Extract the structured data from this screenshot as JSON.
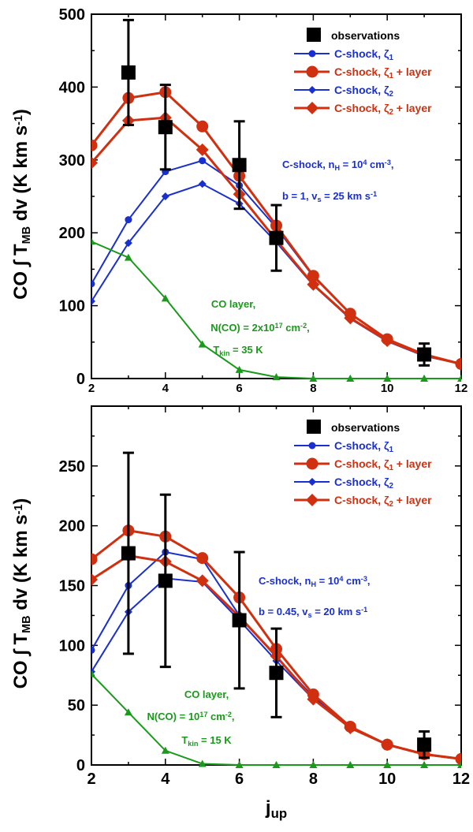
{
  "colors": {
    "observations": "#000000",
    "zeta1": "#1a2fd0",
    "zeta1_layer": "#d03010",
    "zeta2": "#1a2fd0",
    "zeta2_layer": "#d03010",
    "layer": "#1a9a1a",
    "frame": "#000000"
  },
  "chart_data": [
    {
      "type": "line",
      "name": "top",
      "xlim": [
        2,
        12
      ],
      "ylim": [
        0,
        500
      ],
      "yticks": [
        0,
        100,
        200,
        300,
        400,
        500
      ],
      "xticks": [
        2,
        4,
        6,
        8,
        10,
        12
      ],
      "ylabel": {
        "prefix": "CO",
        "integral": "∫",
        "T": "T",
        "T_sub": "MB",
        "dv": "dv",
        "units_open": "(K km s",
        "units_sup": "-1",
        "units_close": ")"
      },
      "legend": {
        "position": "top-right",
        "entries": [
          {
            "key": "observations",
            "label": "observations",
            "sub": ""
          },
          {
            "key": "zeta1",
            "label": "C-shock, ζ",
            "sub": "1",
            "suffix": ""
          },
          {
            "key": "zeta1_layer",
            "label": "C-shock, ζ",
            "sub": "1",
            "suffix": " + layer"
          },
          {
            "key": "zeta2",
            "label": "C-shock, ζ",
            "sub": "2",
            "suffix": ""
          },
          {
            "key": "zeta2_layer",
            "label": "C-shock, ζ",
            "sub": "2",
            "suffix": " + layer"
          }
        ]
      },
      "observations": {
        "x": [
          3,
          4,
          6,
          7,
          11
        ],
        "y": [
          420,
          345,
          293,
          193,
          33
        ],
        "err": [
          72,
          58,
          60,
          45,
          15
        ]
      },
      "series": [
        {
          "key": "zeta1",
          "marker": "circle",
          "x": [
            2,
            3,
            4,
            5,
            6,
            7,
            8,
            9,
            10,
            11,
            12
          ],
          "y": [
            130,
            218,
            284,
            299,
            265,
            207,
            140,
            89,
            54,
            33,
            20
          ]
        },
        {
          "key": "zeta2",
          "marker": "diamond",
          "x": [
            2,
            3,
            4,
            5,
            6,
            7,
            8,
            9,
            10,
            11,
            12
          ],
          "y": [
            106,
            186,
            250,
            267,
            240,
            187,
            128,
            82,
            51,
            31,
            20
          ]
        },
        {
          "key": "zeta1_layer",
          "marker": "circle-big",
          "x": [
            2,
            3,
            4,
            5,
            6,
            7,
            8,
            9,
            10,
            11,
            12
          ],
          "y": [
            320,
            385,
            393,
            346,
            278,
            210,
            141,
            89,
            54,
            33,
            20
          ]
        },
        {
          "key": "zeta2_layer",
          "marker": "diamond-big",
          "x": [
            2,
            3,
            4,
            5,
            6,
            7,
            8,
            9,
            10,
            11,
            12
          ],
          "y": [
            296,
            354,
            358,
            314,
            253,
            190,
            129,
            83,
            52,
            32,
            20
          ]
        },
        {
          "key": "layer",
          "marker": "triangle",
          "x": [
            2,
            3,
            4,
            5,
            6,
            7,
            8,
            9,
            10,
            11,
            12
          ],
          "y": [
            188,
            166,
            110,
            47,
            12,
            2,
            0,
            0,
            0,
            0,
            0
          ]
        }
      ],
      "annotations": {
        "shock": {
          "line1_a": "C-shock, n",
          "line1_sub": "H",
          "line1_b": " = 10",
          "line1_sup": "4",
          "line1_c": " cm",
          "line1_sup2": "-3",
          "line1_d": ",",
          "line2_a": "b = 1, v",
          "line2_sub": "s",
          "line2_b": " = 25 km s",
          "line2_sup": "-1"
        },
        "layer": {
          "line1": "CO layer,",
          "line2_a": "N(CO) = 2x10",
          "line2_sup": "17",
          "line2_b": " cm",
          "line2_sup2": "-2",
          "line2_c": ",",
          "line3_a": "T",
          "line3_sub": "kin",
          "line3_b": " = 35 K"
        }
      }
    },
    {
      "type": "line",
      "name": "bottom",
      "xlim": [
        2,
        12
      ],
      "ylim": [
        0,
        300
      ],
      "yticks": [
        0,
        50,
        100,
        150,
        200,
        250
      ],
      "xticks": [
        2,
        4,
        6,
        8,
        10,
        12
      ],
      "xlabel": {
        "main": "j",
        "sub": "up"
      },
      "ylabel": {
        "prefix": "CO",
        "integral": "∫",
        "T": "T",
        "T_sub": "MB",
        "dv": "dv",
        "units_open": "(K km s",
        "units_sup": "-1",
        "units_close": ")"
      },
      "legend": {
        "position": "top-right",
        "entries": [
          {
            "key": "observations",
            "label": "observations",
            "sub": ""
          },
          {
            "key": "zeta1",
            "label": "C-shock, ζ",
            "sub": "1",
            "suffix": ""
          },
          {
            "key": "zeta1_layer",
            "label": "C-shock, ζ",
            "sub": "1",
            "suffix": " + layer"
          },
          {
            "key": "zeta2",
            "label": "C-shock, ζ",
            "sub": "2",
            "suffix": ""
          },
          {
            "key": "zeta2_layer",
            "label": "C-shock, ζ",
            "sub": "2",
            "suffix": " + layer"
          }
        ]
      },
      "observations": {
        "x": [
          3,
          4,
          6,
          7,
          11
        ],
        "y": [
          177,
          154,
          121,
          77,
          17
        ],
        "err": [
          84,
          72,
          57,
          37,
          11
        ]
      },
      "series": [
        {
          "key": "zeta1",
          "marker": "circle",
          "x": [
            2,
            3,
            4,
            5,
            6,
            7,
            8,
            9,
            10,
            11,
            12
          ],
          "y": [
            96,
            150,
            178,
            172,
            125,
            90,
            57,
            32,
            17,
            9,
            5
          ]
        },
        {
          "key": "zeta2",
          "marker": "diamond",
          "x": [
            2,
            3,
            4,
            5,
            6,
            7,
            8,
            9,
            10,
            11,
            12
          ],
          "y": [
            78,
            128,
            156,
            153,
            121,
            87,
            55,
            31,
            17,
            9,
            5
          ]
        },
        {
          "key": "zeta1_layer",
          "marker": "circle-big",
          "x": [
            2,
            3,
            4,
            5,
            6,
            7,
            8,
            9,
            10,
            11,
            12
          ],
          "y": [
            172,
            196,
            191,
            173,
            140,
            97,
            59,
            32,
            17,
            9,
            5
          ]
        },
        {
          "key": "zeta2_layer",
          "marker": "diamond-big",
          "x": [
            2,
            3,
            4,
            5,
            6,
            7,
            8,
            9,
            10,
            11,
            12
          ],
          "y": [
            155,
            175,
            170,
            154,
            124,
            91,
            55,
            31,
            17,
            9,
            5
          ]
        },
        {
          "key": "layer",
          "marker": "triangle",
          "x": [
            2,
            3,
            4,
            5,
            6,
            7,
            8,
            9,
            10,
            11,
            12
          ],
          "y": [
            76,
            44,
            12,
            1,
            0,
            0,
            0,
            0,
            0,
            0,
            0
          ]
        }
      ],
      "annotations": {
        "shock": {
          "line1_a": "C-shock, n",
          "line1_sub": "H",
          "line1_b": " = 10",
          "line1_sup": "4",
          "line1_c": " cm",
          "line1_sup2": "-3",
          "line1_d": ",",
          "line2_a": "b = 0.45, v",
          "line2_sub": "s",
          "line2_b": " = 20 km s",
          "line2_sup": "-1"
        },
        "layer": {
          "line1": "CO layer,",
          "line2_a": "N(CO) = 10",
          "line2_sup": "17",
          "line2_b": " cm",
          "line2_sup2": "-2",
          "line2_c": ",",
          "line3_a": "T",
          "line3_sub": "kin",
          "line3_b": " = 15 K"
        }
      }
    }
  ]
}
